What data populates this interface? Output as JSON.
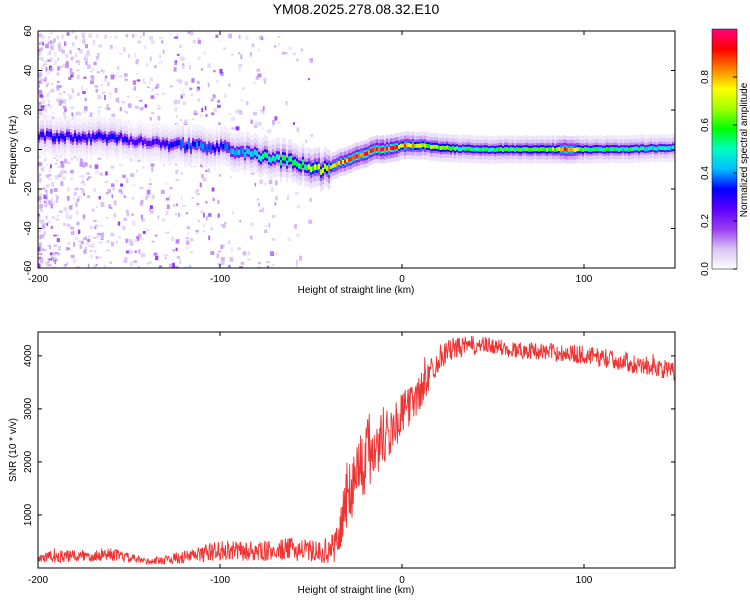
{
  "figure_title": "YM08.2025.278.08.32.E10",
  "chart_data": [
    {
      "type": "heatmap",
      "title": "",
      "xlabel": "Height of straight line (km)",
      "ylabel": "Frequency (Hz)",
      "xlim": [
        -200,
        150
      ],
      "ylim": [
        -60,
        60
      ],
      "x_ticks": [
        -200,
        -100,
        0,
        100
      ],
      "y_ticks": [
        -60,
        -40,
        -20,
        0,
        20,
        40,
        60
      ],
      "colorbar_label": "Normalized spectral amplitude",
      "colorbar_range": [
        0,
        1
      ],
      "colorbar_ticks": [
        "0.0",
        "0.2",
        "0.4",
        "0.6",
        "0.8"
      ],
      "colormap": [
        "#ffffff",
        "#d9c4f5",
        "#9a3cf0",
        "#5a00ff",
        "#0000ff",
        "#00bfff",
        "#00ffc0",
        "#00ff00",
        "#a0ff00",
        "#ffff00",
        "#ff8000",
        "#ff0000",
        "#ff0080"
      ],
      "ridge_frequency": {
        "x": [
          -200,
          -180,
          -160,
          -140,
          -120,
          -100,
          -80,
          -70,
          -60,
          -50,
          -45,
          -40,
          -30,
          -20,
          -15,
          -10,
          -5,
          0,
          10,
          20,
          40,
          60,
          80,
          100,
          120,
          150
        ],
        "y": [
          7,
          6,
          6,
          4,
          2,
          1,
          -3,
          -5,
          -6,
          -9,
          -10,
          -9,
          -5,
          -2,
          0,
          0,
          1,
          2,
          2,
          1,
          0,
          0,
          0,
          0,
          0,
          1
        ]
      },
      "ridge_amplitude": {
        "x": [
          -200,
          -160,
          -140,
          -120,
          -100,
          -80,
          -60,
          -45,
          -30,
          -20,
          -10,
          0,
          20,
          40,
          60,
          80,
          90,
          100,
          120,
          150
        ],
        "y": [
          0.3,
          0.32,
          0.25,
          0.35,
          0.35,
          0.5,
          0.55,
          0.7,
          0.85,
          0.9,
          0.95,
          0.8,
          0.6,
          0.55,
          0.55,
          0.6,
          0.85,
          0.55,
          0.5,
          0.45
        ]
      }
    },
    {
      "type": "line",
      "title": "",
      "xlabel": "Height of straight line (km)",
      "ylabel": "SNR (10 * v/v)",
      "xlim": [
        -200,
        150
      ],
      "ylim": [
        0,
        4450
      ],
      "x_ticks": [
        -200,
        -100,
        0,
        100
      ],
      "y_ticks": [
        1000,
        2000,
        3000,
        4000
      ],
      "line_color": "#ee3333",
      "series": [
        {
          "name": "SNR",
          "x": [
            -200,
            -180,
            -160,
            -140,
            -120,
            -100,
            -80,
            -60,
            -45,
            -38,
            -34,
            -30,
            -25,
            -20,
            -15,
            -10,
            -5,
            0,
            5,
            10,
            15,
            20,
            25,
            30,
            40,
            50,
            60,
            80,
            100,
            120,
            140,
            150
          ],
          "mean": [
            200,
            220,
            260,
            120,
            200,
            330,
            300,
            360,
            300,
            350,
            700,
            1400,
            1800,
            2100,
            2300,
            2500,
            2650,
            2900,
            3100,
            3300,
            3650,
            3950,
            4100,
            4150,
            4200,
            4180,
            4120,
            4080,
            4020,
            3900,
            3780,
            3700
          ],
          "noise": [
            120,
            120,
            120,
            60,
            120,
            200,
            180,
            220,
            200,
            300,
            450,
            650,
            700,
            750,
            800,
            600,
            500,
            400,
            380,
            350,
            300,
            250,
            220,
            200,
            180,
            160,
            160,
            160,
            180,
            180,
            180,
            180
          ]
        }
      ]
    }
  ]
}
